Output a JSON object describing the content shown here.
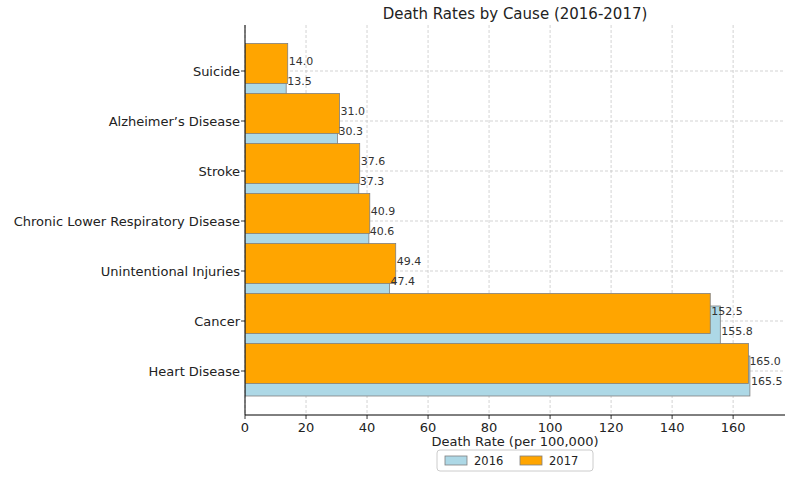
{
  "chart_data": {
    "type": "bar",
    "orientation": "horizontal",
    "title": "Death Rates by Cause (2016-2017)",
    "x_label": "Death Rate (per 100,000)",
    "categories": [
      "Heart Disease",
      "Cancer",
      "Unintentional Injuries",
      "Chronic Lower Respiratory Disease",
      "Stroke",
      "Alzheimer’s Disease",
      "Suicide"
    ],
    "series": [
      {
        "name": "2016",
        "color": "#add8e6",
        "values": [
          165.5,
          155.8,
          47.4,
          40.6,
          37.3,
          30.3,
          13.5
        ],
        "value_labels": [
          "165.5",
          "155.8",
          "47.4",
          "40.6",
          "37.3",
          "30.3",
          "13.5"
        ]
      },
      {
        "name": "2017",
        "color": "#ffa500",
        "values": [
          165.0,
          152.5,
          49.4,
          40.9,
          37.6,
          31.0,
          14.0
        ],
        "value_labels": [
          "165.0",
          "152.5",
          "49.4",
          "40.9",
          "37.6",
          "31.0",
          "14.0"
        ]
      }
    ],
    "xlim": [
      0,
      177
    ],
    "xticks": [
      0,
      20,
      40,
      60,
      80,
      100,
      120,
      140,
      160
    ],
    "grid": true,
    "legend": "bottom",
    "data_labels": true
  }
}
